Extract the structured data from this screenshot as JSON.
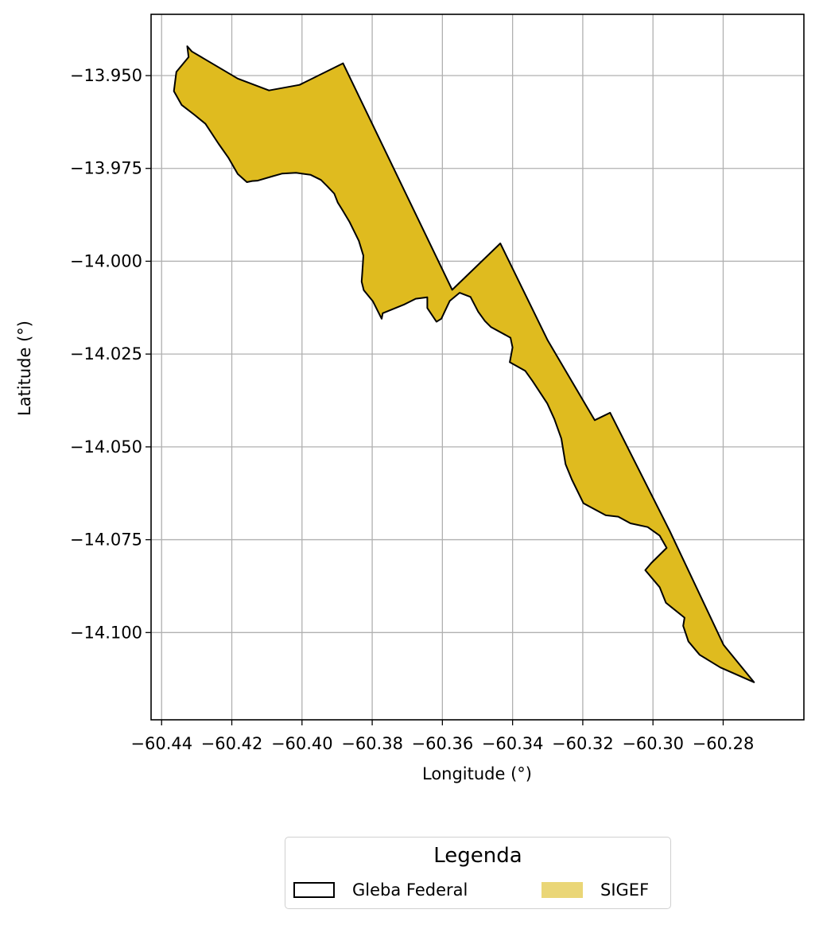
{
  "map": {
    "xlabel": "Longitude (°)",
    "ylabel": "Latitude (°)",
    "x_ticks": [
      "−60.44",
      "−60.42",
      "−60.40",
      "−60.38",
      "−60.36",
      "−60.34",
      "−60.32",
      "−60.30",
      "−60.28"
    ],
    "y_ticks": [
      "−13.950",
      "−13.975",
      "−14.000",
      "−14.025",
      "−14.050",
      "−14.075",
      "−14.100"
    ],
    "x_tick_values": [
      -60.44,
      -60.42,
      -60.4,
      -60.38,
      -60.36,
      -60.34,
      -60.32,
      -60.3,
      -60.28
    ],
    "y_tick_values": [
      -13.95,
      -13.975,
      -14.0,
      -14.025,
      -14.05,
      -14.075,
      -14.1
    ],
    "xlim": [
      -60.443,
      -60.257
    ],
    "ylim": [
      -14.1235,
      -13.9335
    ],
    "grid": true,
    "layers": [
      {
        "name": "SIGEF",
        "fill": "#dfbb1f",
        "stroke": "none",
        "coordinates": [
          [
            -60.4327,
            -13.9421
          ],
          [
            -60.4314,
            -13.9435
          ],
          [
            -60.4183,
            -13.9508
          ],
          [
            -60.4094,
            -13.954
          ],
          [
            -60.4007,
            -13.9525
          ],
          [
            -60.3883,
            -13.9467
          ],
          [
            -60.3572,
            -14.0077
          ],
          [
            -60.3435,
            -13.9952
          ],
          [
            -60.33,
            -14.0213
          ],
          [
            -60.3166,
            -14.0428
          ],
          [
            -60.3122,
            -14.0408
          ],
          [
            -60.2952,
            -14.0727
          ],
          [
            -60.2799,
            -14.1033
          ],
          [
            -60.2712,
            -14.1134
          ],
          [
            -60.2808,
            -14.1094
          ],
          [
            -60.2867,
            -14.106
          ],
          [
            -60.2899,
            -14.1024
          ],
          [
            -60.2914,
            -14.0982
          ],
          [
            -60.291,
            -14.096
          ],
          [
            -60.2963,
            -14.092
          ],
          [
            -60.2981,
            -14.0878
          ],
          [
            -60.3022,
            -14.0832
          ],
          [
            -60.3005,
            -14.0813
          ],
          [
            -60.2961,
            -14.0772
          ],
          [
            -60.2981,
            -14.0739
          ],
          [
            -60.3015,
            -14.0716
          ],
          [
            -60.3064,
            -14.0706
          ],
          [
            -60.3099,
            -14.0688
          ],
          [
            -60.3135,
            -14.0684
          ],
          [
            -60.3198,
            -14.0652
          ],
          [
            -60.3231,
            -14.0588
          ],
          [
            -60.3249,
            -14.0547
          ],
          [
            -60.3261,
            -14.0478
          ],
          [
            -60.3281,
            -14.0425
          ],
          [
            -60.3301,
            -14.0383
          ],
          [
            -60.3343,
            -14.0323
          ],
          [
            -60.3364,
            -14.0295
          ],
          [
            -60.3408,
            -14.0272
          ],
          [
            -60.34,
            -14.0232
          ],
          [
            -60.3406,
            -14.0206
          ],
          [
            -60.3462,
            -14.0177
          ],
          [
            -60.3479,
            -14.0161
          ],
          [
            -60.3498,
            -14.0136
          ],
          [
            -60.352,
            -14.0096
          ],
          [
            -60.3551,
            -14.0085
          ],
          [
            -60.3579,
            -14.0107
          ],
          [
            -60.3603,
            -14.0155
          ],
          [
            -60.3617,
            -14.0163
          ],
          [
            -60.3643,
            -14.0126
          ],
          [
            -60.3643,
            -14.0097
          ],
          [
            -60.3676,
            -14.0101
          ],
          [
            -60.371,
            -14.0117
          ],
          [
            -60.377,
            -14.014
          ],
          [
            -60.3773,
            -14.0155
          ],
          [
            -60.3798,
            -14.0108
          ],
          [
            -60.3824,
            -14.0078
          ],
          [
            -60.383,
            -14.0055
          ],
          [
            -60.3828,
            -14.0028
          ],
          [
            -60.3825,
            -13.9985
          ],
          [
            -60.3838,
            -13.9945
          ],
          [
            -60.3864,
            -13.9895
          ],
          [
            -60.3885,
            -13.9862
          ],
          [
            -60.3898,
            -13.9842
          ],
          [
            -60.3908,
            -13.9818
          ],
          [
            -60.3927,
            -13.9799
          ],
          [
            -60.3946,
            -13.9781
          ],
          [
            -60.3976,
            -13.9767
          ],
          [
            -60.4017,
            -13.9762
          ],
          [
            -60.4057,
            -13.9764
          ],
          [
            -60.4083,
            -13.9771
          ],
          [
            -60.4126,
            -13.9783
          ],
          [
            -60.4142,
            -13.9784
          ],
          [
            -60.4157,
            -13.9787
          ],
          [
            -60.4183,
            -13.9765
          ],
          [
            -60.4209,
            -13.9722
          ],
          [
            -60.4238,
            -13.9683
          ],
          [
            -60.4275,
            -13.963
          ],
          [
            -60.4306,
            -13.9606
          ],
          [
            -60.4343,
            -13.9579
          ],
          [
            -60.4365,
            -13.9542
          ],
          [
            -60.4358,
            -13.949
          ],
          [
            -60.4323,
            -13.945
          ]
        ]
      },
      {
        "name": "Gleba Federal",
        "fill": "none",
        "stroke": "#000000",
        "coordinates": [
          [
            -60.4327,
            -13.9421
          ],
          [
            -60.4314,
            -13.9435
          ],
          [
            -60.4183,
            -13.9508
          ],
          [
            -60.4094,
            -13.954
          ],
          [
            -60.4007,
            -13.9525
          ],
          [
            -60.3883,
            -13.9467
          ],
          [
            -60.3572,
            -14.0077
          ],
          [
            -60.3435,
            -13.9952
          ],
          [
            -60.33,
            -14.0213
          ],
          [
            -60.3166,
            -14.0428
          ],
          [
            -60.3122,
            -14.0408
          ],
          [
            -60.2952,
            -14.0727
          ],
          [
            -60.2799,
            -14.1033
          ],
          [
            -60.2712,
            -14.1134
          ],
          [
            -60.2808,
            -14.1094
          ],
          [
            -60.2867,
            -14.106
          ],
          [
            -60.2899,
            -14.1024
          ],
          [
            -60.2914,
            -14.0982
          ],
          [
            -60.291,
            -14.096
          ],
          [
            -60.2963,
            -14.092
          ],
          [
            -60.2981,
            -14.0878
          ],
          [
            -60.3022,
            -14.0832
          ],
          [
            -60.3005,
            -14.0813
          ],
          [
            -60.2961,
            -14.0772
          ],
          [
            -60.2981,
            -14.0739
          ],
          [
            -60.3015,
            -14.0716
          ],
          [
            -60.3064,
            -14.0706
          ],
          [
            -60.3099,
            -14.0688
          ],
          [
            -60.3135,
            -14.0684
          ],
          [
            -60.3198,
            -14.0652
          ],
          [
            -60.3231,
            -14.0588
          ],
          [
            -60.3249,
            -14.0547
          ],
          [
            -60.3261,
            -14.0478
          ],
          [
            -60.3281,
            -14.0425
          ],
          [
            -60.3301,
            -14.0383
          ],
          [
            -60.3343,
            -14.0323
          ],
          [
            -60.3364,
            -14.0295
          ],
          [
            -60.3408,
            -14.0272
          ],
          [
            -60.34,
            -14.0232
          ],
          [
            -60.3406,
            -14.0206
          ],
          [
            -60.3462,
            -14.0177
          ],
          [
            -60.3479,
            -14.0161
          ],
          [
            -60.3498,
            -14.0136
          ],
          [
            -60.352,
            -14.0096
          ],
          [
            -60.3551,
            -14.0085
          ],
          [
            -60.3579,
            -14.0107
          ],
          [
            -60.3603,
            -14.0155
          ],
          [
            -60.3617,
            -14.0163
          ],
          [
            -60.3643,
            -14.0126
          ],
          [
            -60.3643,
            -14.0097
          ],
          [
            -60.3676,
            -14.0101
          ],
          [
            -60.371,
            -14.0117
          ],
          [
            -60.377,
            -14.014
          ],
          [
            -60.3773,
            -14.0155
          ],
          [
            -60.3798,
            -14.0108
          ],
          [
            -60.3824,
            -14.0078
          ],
          [
            -60.383,
            -14.0055
          ],
          [
            -60.3828,
            -14.0028
          ],
          [
            -60.3825,
            -13.9985
          ],
          [
            -60.3838,
            -13.9945
          ],
          [
            -60.3864,
            -13.9895
          ],
          [
            -60.3885,
            -13.9862
          ],
          [
            -60.3898,
            -13.9842
          ],
          [
            -60.3908,
            -13.9818
          ],
          [
            -60.3927,
            -13.9799
          ],
          [
            -60.3946,
            -13.9781
          ],
          [
            -60.3976,
            -13.9767
          ],
          [
            -60.4017,
            -13.9762
          ],
          [
            -60.4057,
            -13.9764
          ],
          [
            -60.4083,
            -13.9771
          ],
          [
            -60.4126,
            -13.9783
          ],
          [
            -60.4142,
            -13.9784
          ],
          [
            -60.4157,
            -13.9787
          ],
          [
            -60.4183,
            -13.9765
          ],
          [
            -60.4209,
            -13.9722
          ],
          [
            -60.4238,
            -13.9683
          ],
          [
            -60.4275,
            -13.963
          ],
          [
            -60.4306,
            -13.9606
          ],
          [
            -60.4343,
            -13.9579
          ],
          [
            -60.4365,
            -13.9542
          ],
          [
            -60.4358,
            -13.949
          ],
          [
            -60.4323,
            -13.945
          ]
        ]
      }
    ]
  },
  "legend": {
    "title": "Legenda",
    "items": [
      {
        "label": "Gleba Federal",
        "fill": "#ffffff",
        "stroke": "#000000"
      },
      {
        "label": "SIGEF",
        "fill": "#ead677",
        "stroke": "none"
      }
    ]
  }
}
